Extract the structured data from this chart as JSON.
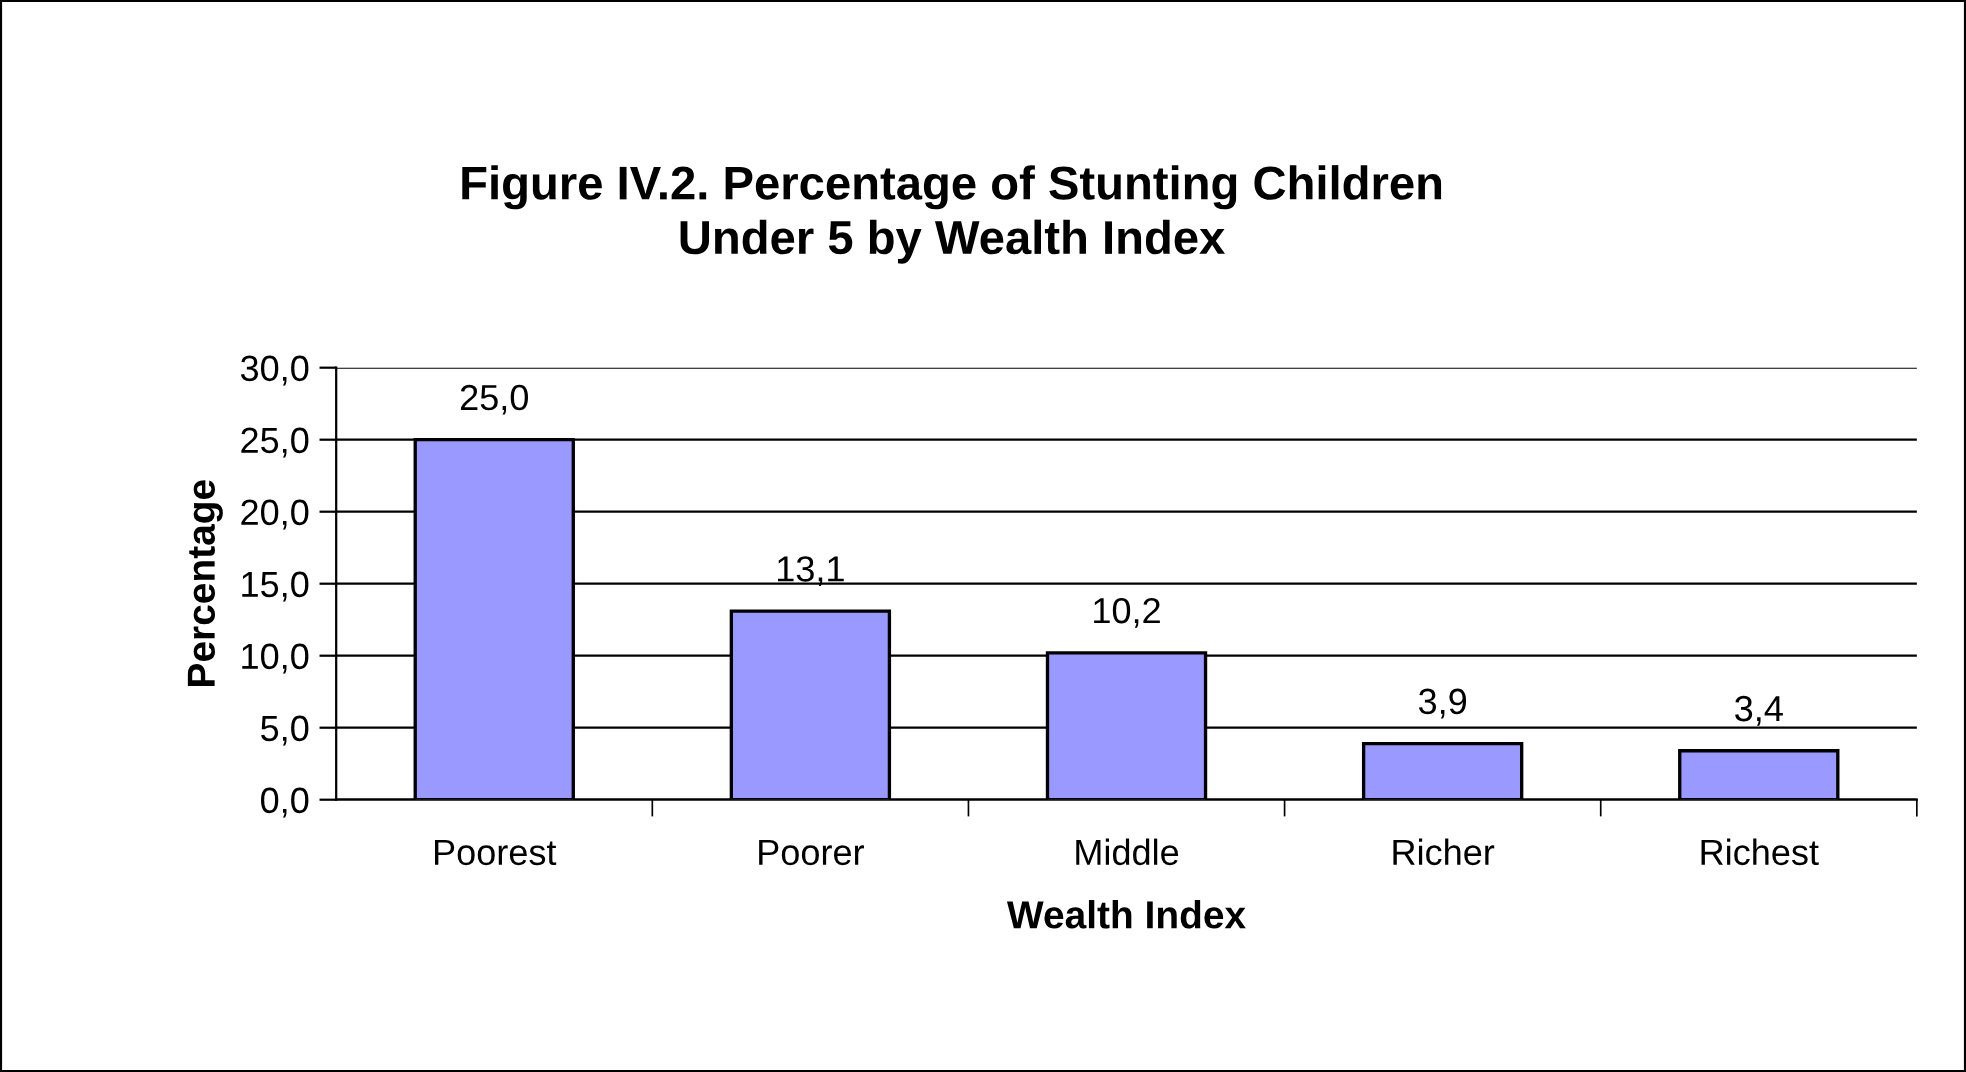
{
  "chart_data": {
    "type": "bar",
    "title": "Figure IV.2. Percentage of Stunting Children\nUnder 5 by Wealth Index",
    "xlabel": "Wealth Index",
    "ylabel": "Percentage",
    "categories": [
      "Poorest",
      "Poorer",
      "Middle",
      "Richer",
      "Richest"
    ],
    "values": [
      25.0,
      13.1,
      10.2,
      3.9,
      3.4
    ],
    "value_labels": [
      "25,0",
      "13,1",
      "10,2",
      "3,9",
      "3,4"
    ],
    "color": "#9999ff",
    "ylim": [
      0,
      30
    ],
    "yticks": [
      {
        "value": 0,
        "label": "0,0"
      },
      {
        "value": 5,
        "label": "5,0"
      },
      {
        "value": 10,
        "label": "10,0"
      },
      {
        "value": 15,
        "label": "15,0"
      },
      {
        "value": 20,
        "label": "20,0"
      },
      {
        "value": 25,
        "label": "25,0"
      },
      {
        "value": 30,
        "label": "30,0"
      }
    ],
    "grid": "y",
    "legend": false
  }
}
